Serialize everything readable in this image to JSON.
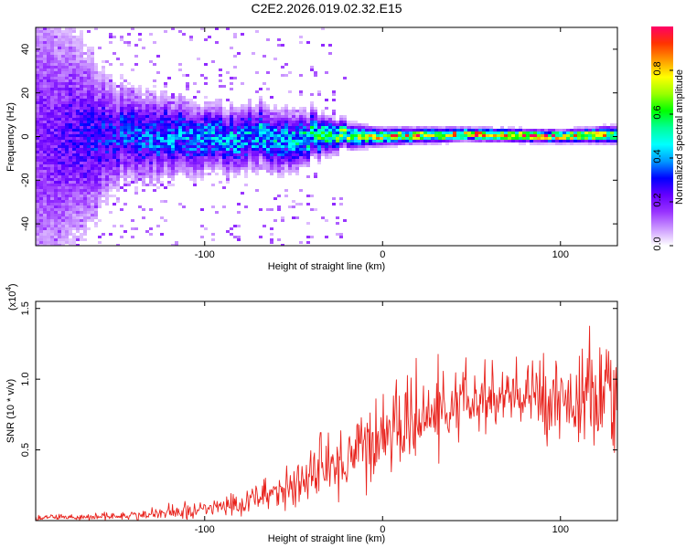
{
  "title": "C2E2.2026.019.02.32.E15",
  "chart_data": [
    {
      "type": "heatmap",
      "name": "spectrogram",
      "xlabel": "Height of straight line (km)",
      "ylabel": "Frequency (Hz)",
      "xlim": [
        -195,
        132
      ],
      "ylim": [
        -50,
        50
      ],
      "xticks": [
        -100,
        0,
        100
      ],
      "xtick_labels": [
        "-100",
        "0",
        "100"
      ],
      "yticks": [
        -40,
        -20,
        0,
        20,
        40
      ],
      "ytick_labels": [
        "-40",
        "-20",
        "0",
        "20",
        "40"
      ],
      "colorbar": {
        "label": "Normalized spectral amplitude",
        "range": [
          0,
          1
        ],
        "ticks": [
          0.0,
          0.2,
          0.4,
          0.6,
          0.8
        ],
        "tick_labels": [
          "0.0",
          "0.2",
          "0.4",
          "0.6",
          "0.8"
        ],
        "colors": [
          "#ffffff",
          "#cc99ff",
          "#9933ff",
          "#6600ff",
          "#0000ff",
          "#0099ff",
          "#00ffff",
          "#00ff99",
          "#00ff00",
          "#99ff00",
          "#ffff00",
          "#ff9900",
          "#ff3300",
          "#ff0066"
        ]
      },
      "ridge": {
        "description": "energy concentrated near 0 Hz, broad/noisy for heights below -20 km, narrow and strong above -20 km",
        "x": [
          -195,
          -150,
          -100,
          -50,
          -20,
          0,
          50,
          100,
          132
        ],
        "center_hz": [
          0,
          0,
          0,
          -2,
          0,
          0,
          1,
          0,
          1
        ],
        "width_hz": [
          40,
          12,
          8,
          7,
          3,
          2,
          1.5,
          1.5,
          2
        ],
        "peak_amplitude": [
          0.2,
          0.35,
          0.45,
          0.5,
          0.7,
          0.85,
          0.95,
          0.95,
          0.8
        ]
      }
    },
    {
      "type": "line",
      "name": "snr",
      "xlabel": "Height of straight line (km)",
      "ylabel": "SNR (10 * v/v)",
      "scale_label": "(x10",
      "scale_exponent": "4",
      "scale_close": ")",
      "xlim": [
        -195,
        132
      ],
      "ylim": [
        0,
        15500
      ],
      "xticks": [
        -100,
        0,
        100
      ],
      "xtick_labels": [
        "-100",
        "0",
        "100"
      ],
      "yticks": [
        5000,
        10000,
        15000
      ],
      "ytick_labels": [
        "0.5",
        "1.0",
        "1.5"
      ],
      "color": "#e8221c",
      "envelope": {
        "x": [
          -195,
          -150,
          -120,
          -100,
          -80,
          -60,
          -40,
          -25,
          -15,
          0,
          20,
          40,
          60,
          80,
          100,
          115,
          132
        ],
        "mean": [
          200,
          300,
          500,
          800,
          1200,
          2000,
          3000,
          4000,
          5000,
          6000,
          7000,
          8000,
          8500,
          8700,
          8700,
          8500,
          8200
        ],
        "spread": [
          200,
          300,
          400,
          600,
          900,
          1300,
          1800,
          2500,
          2800,
          2800,
          2600,
          2500,
          2500,
          2600,
          2800,
          3500,
          4000
        ]
      }
    }
  ]
}
